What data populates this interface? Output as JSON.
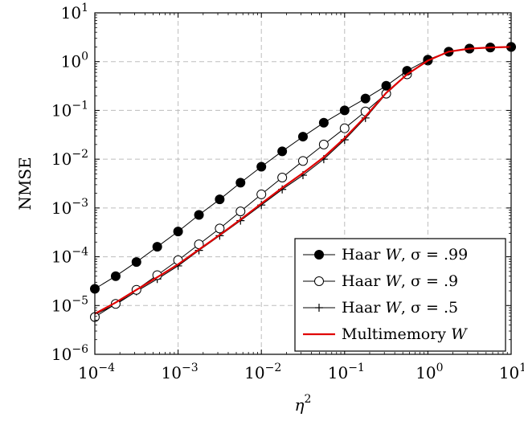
{
  "chart_data": {
    "type": "line",
    "xlabel_base": "η",
    "xlabel_sup": "2",
    "ylabel": "NMSE",
    "xscale": "log",
    "yscale": "log",
    "xlim": [
      0.0001,
      10
    ],
    "ylim": [
      1e-06,
      10
    ],
    "grid": true,
    "legend_position": "bottom-right",
    "x_ticks": [
      {
        "base": "10",
        "exp": "−4"
      },
      {
        "base": "10",
        "exp": "−3"
      },
      {
        "base": "10",
        "exp": "−2"
      },
      {
        "base": "10",
        "exp": "−1"
      },
      {
        "base": "10",
        "exp": "0"
      },
      {
        "base": "10",
        "exp": "1"
      }
    ],
    "y_ticks": [
      {
        "base": "10",
        "exp": "−6"
      },
      {
        "base": "10",
        "exp": "−5"
      },
      {
        "base": "10",
        "exp": "−4"
      },
      {
        "base": "10",
        "exp": "−3"
      },
      {
        "base": "10",
        "exp": "−2"
      },
      {
        "base": "10",
        "exp": "−1"
      },
      {
        "base": "10",
        "exp": "0"
      },
      {
        "base": "10",
        "exp": "1"
      }
    ],
    "x": [
      0.0001,
      0.000178,
      0.000316,
      0.000562,
      0.001,
      0.00178,
      0.00316,
      0.00562,
      0.01,
      0.0178,
      0.0316,
      0.0562,
      0.1,
      0.178,
      0.316,
      0.562,
      1,
      1.78,
      3.16,
      5.62,
      10
    ],
    "series": [
      {
        "name_prefix": "Haar ",
        "name_var": "W",
        "name_suffix": ", σ = .99",
        "marker": "filled-circle",
        "color": "#000000",
        "values": [
          2.2e-05,
          4e-05,
          7.8e-05,
          0.00016,
          0.00033,
          0.00072,
          0.0015,
          0.0033,
          0.007,
          0.0145,
          0.029,
          0.056,
          0.1,
          0.175,
          0.32,
          0.65,
          1.1,
          1.6,
          1.85,
          1.95,
          2.0
        ]
      },
      {
        "name_prefix": "Haar ",
        "name_var": "W",
        "name_suffix": ", σ = .9",
        "marker": "open-circle",
        "color": "#000000",
        "values": [
          5.8e-06,
          1.08e-05,
          2.1e-05,
          4.2e-05,
          8.5e-05,
          0.00018,
          0.00038,
          0.00085,
          0.0019,
          0.0042,
          0.0092,
          0.02,
          0.043,
          0.095,
          0.22,
          0.55,
          1.05,
          1.6,
          1.85,
          1.95,
          2.0
        ]
      },
      {
        "name_prefix": "Haar ",
        "name_var": "W",
        "name_suffix": ", σ = .5",
        "marker": "plus",
        "color": "#000000",
        "values": [
          6.5e-06,
          1.05e-05,
          1.95e-05,
          3.5e-05,
          6.5e-05,
          0.000135,
          0.00027,
          0.00055,
          0.00115,
          0.0024,
          0.0047,
          0.01,
          0.025,
          0.07,
          0.22,
          0.55,
          1.05,
          1.6,
          1.85,
          1.95,
          2.0
        ]
      },
      {
        "name_prefix": "Multimemory ",
        "name_var": "W",
        "name_suffix": "",
        "marker": "none",
        "color": "#e00000",
        "values": [
          6.8e-06,
          1.15e-05,
          2.1e-05,
          3.8e-05,
          7e-05,
          0.00014,
          0.00028,
          0.00058,
          0.00123,
          0.0026,
          0.0052,
          0.011,
          0.027,
          0.075,
          0.23,
          0.55,
          1.05,
          1.6,
          1.85,
          1.95,
          2.0
        ]
      }
    ]
  }
}
